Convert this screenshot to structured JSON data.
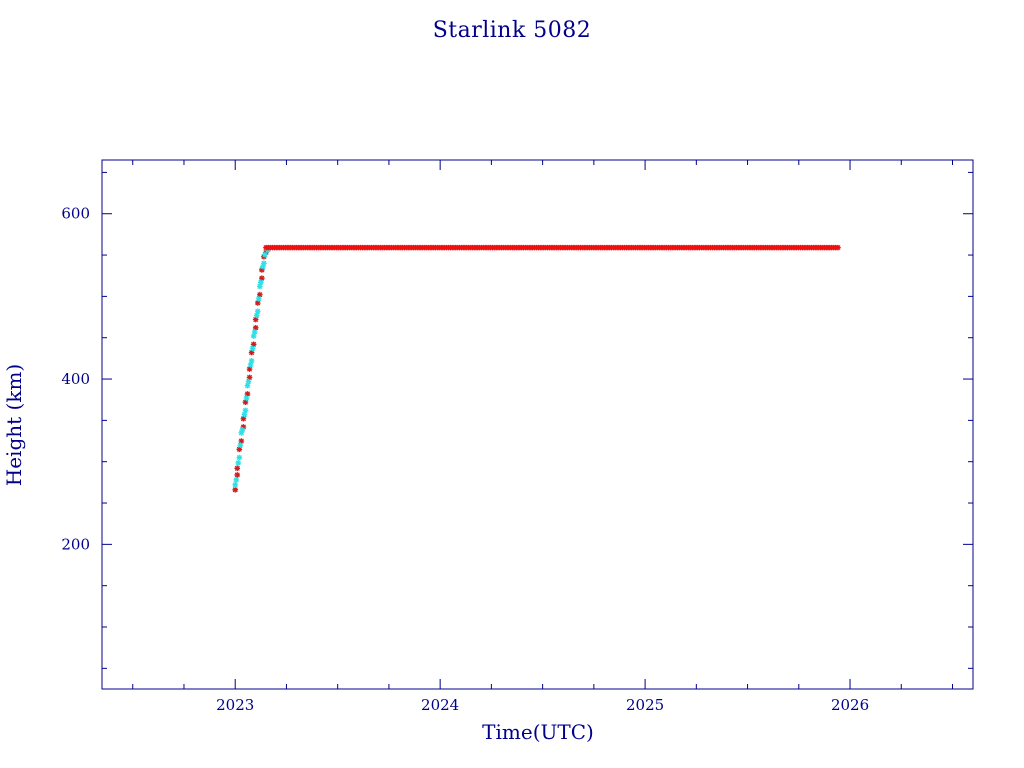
{
  "chart_data": {
    "type": "scatter",
    "title": "Starlink 5082",
    "xlabel": "Time(UTC)",
    "ylabel": "Height (km)",
    "xlim": [
      2022.35,
      2026.6
    ],
    "ylim": [
      25,
      665
    ],
    "x_major_ticks": [
      2023,
      2024,
      2025,
      2026
    ],
    "x_minor_step": 0.25,
    "y_major_ticks": [
      200,
      400,
      600
    ],
    "y_minor_step": 50,
    "grid": false,
    "colors": {
      "axes": "#00008b",
      "ascent_marker": "#cc2020",
      "ascent_marker_alt": "#30e0e8",
      "plateau_marker": "#ee1010"
    },
    "series": [
      {
        "marker": "star",
        "color": "#cc2020",
        "alt_color": "#30e0e8",
        "points": [
          [
            2023.0,
            266
          ],
          [
            2023.0,
            272
          ],
          [
            2023.01,
            284
          ],
          [
            2023.01,
            292
          ],
          [
            2023.02,
            305
          ],
          [
            2023.02,
            315
          ],
          [
            2023.03,
            325
          ],
          [
            2023.03,
            335
          ],
          [
            2023.04,
            342
          ],
          [
            2023.04,
            352
          ],
          [
            2023.05,
            362
          ],
          [
            2023.05,
            372
          ],
          [
            2023.06,
            382
          ],
          [
            2023.06,
            392
          ],
          [
            2023.07,
            402
          ],
          [
            2023.07,
            412
          ],
          [
            2023.08,
            422
          ],
          [
            2023.08,
            432
          ],
          [
            2023.09,
            442
          ],
          [
            2023.09,
            452
          ],
          [
            2023.1,
            462
          ],
          [
            2023.1,
            472
          ],
          [
            2023.11,
            482
          ],
          [
            2023.11,
            492
          ],
          [
            2023.12,
            502
          ],
          [
            2023.12,
            512
          ],
          [
            2023.13,
            522
          ],
          [
            2023.13,
            532
          ],
          [
            2023.14,
            540
          ],
          [
            2023.14,
            548
          ],
          [
            2023.15,
            553
          ],
          [
            2023.16,
            556
          ]
        ]
      },
      {
        "marker": "star",
        "color": "#ee1010",
        "plateau": {
          "x_start": 2023.15,
          "x_end": 2025.95,
          "y": 559
        }
      }
    ]
  }
}
